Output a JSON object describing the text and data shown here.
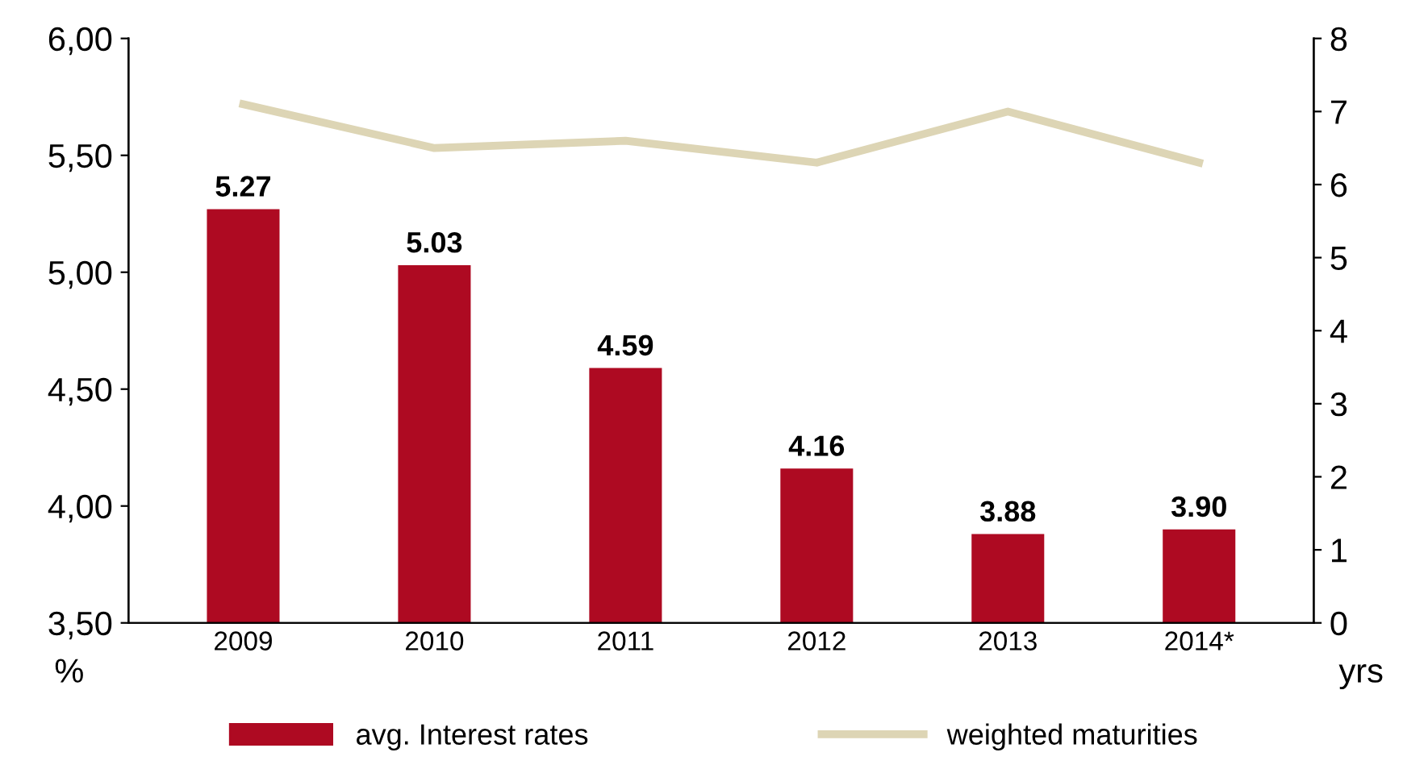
{
  "chart_data": {
    "type": "bar",
    "categories": [
      "2009",
      "2010",
      "2011",
      "2012",
      "2013",
      "2014*"
    ],
    "series": [
      {
        "name": "avg. Interest rates",
        "color": "#ae0a22",
        "values": [
          5.27,
          5.03,
          4.59,
          4.16,
          3.88,
          3.9
        ],
        "value_labels": [
          "5.27",
          "5.03",
          "4.59",
          "4.16",
          "3.88",
          "3.90"
        ]
      },
      {
        "name": "weighted maturities",
        "type": "line",
        "axis": "y2",
        "color": "#ddd5b5",
        "values": [
          7.1,
          6.5,
          6.6,
          6.3,
          7.0,
          6.3
        ]
      }
    ],
    "ylabel": "%",
    "y2label": "yrs",
    "ylim": [
      3.5,
      6.0
    ],
    "yticks": [
      {
        "value": 3.5,
        "label": "3,50"
      },
      {
        "value": 4.0,
        "label": "4,00"
      },
      {
        "value": 4.5,
        "label": "4,50"
      },
      {
        "value": 5.0,
        "label": "5,00"
      },
      {
        "value": 5.5,
        "label": "5,50"
      },
      {
        "value": 6.0,
        "label": "6,00"
      }
    ],
    "y2lim": [
      0,
      8
    ],
    "y2ticks": [
      0,
      1,
      2,
      3,
      4,
      5,
      6,
      7,
      8
    ],
    "legend": "bottom",
    "grid": false,
    "marker": "none",
    "line_style": "solid"
  }
}
